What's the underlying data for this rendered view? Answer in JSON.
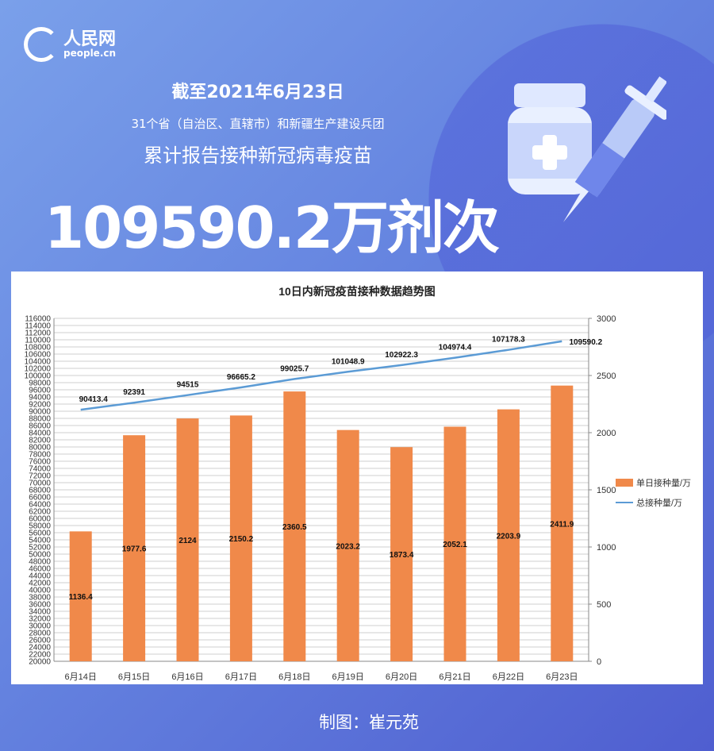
{
  "brand": {
    "logo_text": "人民网",
    "logo_sub": "people.cn"
  },
  "header": {
    "date_line": "截至2021年6月23日",
    "scope_line": "31个省（自治区、直辖市）和新疆生产建设兵团",
    "desc_line": "累计报告接种新冠病毒疫苗",
    "headline": "109590.2万剂次"
  },
  "illustration": {
    "icons": [
      "vaccine-vial-icon",
      "syringe-icon"
    ]
  },
  "chart_data": {
    "type": "bar+line",
    "title": "10日内新冠疫苗接种数据趋势图",
    "categories": [
      "6月14日",
      "6月15日",
      "6月16日",
      "6月17日",
      "6月18日",
      "6月19日",
      "6月20日",
      "6月21日",
      "6月22日",
      "6月23日"
    ],
    "series": [
      {
        "name": "单日接种量/万",
        "type": "bar",
        "axis": "right",
        "color": "#f0894a",
        "values": [
          1136.4,
          1977.6,
          2124,
          2150.2,
          2360.5,
          2023.2,
          1873.4,
          2052.1,
          2203.9,
          2411.9
        ],
        "labels": [
          "1136.4",
          "1977.6",
          "2124",
          "2150.2",
          "2360.5",
          "2023.2",
          "1873.4",
          "2052.1",
          "2203.9",
          "2411.9"
        ]
      },
      {
        "name": "总接种量/万",
        "type": "line",
        "axis": "left",
        "color": "#5b9bd5",
        "values": [
          90413.4,
          92391,
          94515,
          96665.2,
          99025.7,
          101048.9,
          102922.3,
          104974.4,
          107178.3,
          109590.2
        ],
        "labels": [
          "90413.4",
          "92391",
          "94515",
          "96665.2",
          "99025.7",
          "101048.9",
          "102922.3",
          "104974.4",
          "107178.3",
          "109590.2"
        ]
      }
    ],
    "left_axis": {
      "min": 20000,
      "max": 116000,
      "step": 2000
    },
    "right_axis": {
      "min": 0,
      "max": 3000,
      "step": 500
    },
    "grid": true,
    "legend": "right"
  },
  "footer": {
    "credit": "制图：崔元苑"
  }
}
